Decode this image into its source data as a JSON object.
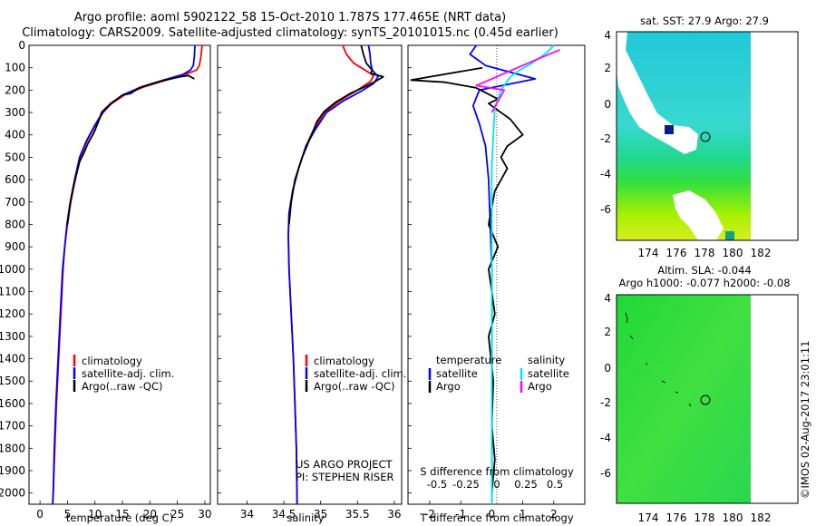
{
  "header": {
    "line1": "Argo profile: aoml 5902122_58 15-Oct-2010 1.787S 177.465E (NRT data)",
    "line2": "Climatology: CARS2009. Satellite-adjusted climatology: synTS_20101015.nc (0.45d earlier)"
  },
  "colors": {
    "clim": "#ff0000",
    "sat": "#0000ff",
    "argo": "#000000",
    "sat_s": "#00e5ee",
    "argo_s": "#ff00ff"
  },
  "chart_data": [
    {
      "type": "line",
      "id": "temperature",
      "xlabel": "temperature (deg C)",
      "ylabel": "",
      "xlim": [
        -2,
        31
      ],
      "ylim": [
        2050,
        0
      ],
      "xticks": [
        0,
        5,
        10,
        15,
        20,
        25,
        30
      ],
      "yticks": [
        0,
        100,
        200,
        300,
        400,
        500,
        600,
        700,
        800,
        900,
        1000,
        1100,
        1200,
        1300,
        1400,
        1500,
        1600,
        1700,
        1800,
        1900,
        2000
      ],
      "legend": [
        "climatology",
        "satellite-adj. clim.",
        "Argo(..raw -QC)"
      ],
      "series": [
        {
          "name": "climatology",
          "color": "clim",
          "points": [
            [
              29.5,
              0
            ],
            [
              29.3,
              50
            ],
            [
              29.0,
              90
            ],
            [
              28.5,
              110
            ],
            [
              26.5,
              130
            ],
            [
              23,
              155
            ],
            [
              19,
              185
            ],
            [
              15.5,
              220
            ],
            [
              13,
              260
            ],
            [
              11.5,
              300
            ],
            [
              10,
              360
            ],
            [
              8.5,
              430
            ],
            [
              7.3,
              500
            ],
            [
              6.4,
              600
            ],
            [
              5.6,
              700
            ],
            [
              5.0,
              800
            ],
            [
              4.5,
              900
            ],
            [
              4.2,
              1000
            ],
            [
              3.8,
              1200
            ],
            [
              3.4,
              1400
            ],
            [
              3.0,
              1600
            ],
            [
              2.7,
              1800
            ],
            [
              2.4,
              2000
            ],
            [
              2.3,
              2050
            ]
          ]
        },
        {
          "name": "satellite-adj. clim.",
          "color": "sat",
          "points": [
            [
              28.2,
              0
            ],
            [
              28.1,
              50
            ],
            [
              27.9,
              90
            ],
            [
              27.4,
              110
            ],
            [
              26,
              130
            ],
            [
              22.5,
              155
            ],
            [
              18.5,
              185
            ],
            [
              15.2,
              220
            ],
            [
              12.8,
              260
            ],
            [
              11.4,
              300
            ],
            [
              9.9,
              360
            ],
            [
              8.4,
              430
            ],
            [
              7.2,
              500
            ],
            [
              6.3,
              600
            ],
            [
              5.5,
              700
            ],
            [
              4.9,
              800
            ],
            [
              4.5,
              900
            ],
            [
              4.1,
              1000
            ],
            [
              3.7,
              1200
            ],
            [
              3.3,
              1400
            ],
            [
              2.9,
              1600
            ],
            [
              2.6,
              1800
            ],
            [
              2.4,
              2000
            ],
            [
              2.3,
              2050
            ]
          ]
        },
        {
          "name": "Argo(..raw -QC)",
          "color": "argo",
          "points": [
            [
              28.1,
              150
            ],
            [
              27,
              135
            ],
            [
              25.5,
              140
            ],
            [
              22,
              160
            ],
            [
              18,
              190
            ],
            [
              16.5,
              215
            ],
            [
              15,
              222
            ],
            [
              13.5,
              250
            ],
            [
              12,
              280
            ],
            [
              11.2,
              300
            ],
            [
              10.8,
              330
            ],
            [
              10,
              380
            ],
            [
              9.6,
              400
            ],
            [
              8.7,
              440
            ],
            [
              8.0,
              480
            ],
            [
              7.2,
              520
            ],
            [
              6.6,
              580
            ],
            [
              6.0,
              640
            ],
            [
              5.4,
              720
            ],
            [
              5.0,
              800
            ]
          ]
        }
      ]
    },
    {
      "type": "line",
      "id": "salinity",
      "xlabel": "salinity",
      "xlim": [
        33.6,
        36.1
      ],
      "ylim": [
        2050,
        0
      ],
      "xticks": [
        34,
        34.5,
        35,
        35.5,
        36
      ],
      "tick_labels": [
        "34",
        "34.5",
        "35",
        "35.5",
        "36"
      ],
      "legend": [
        "climatology",
        "satellite-adj. clim.",
        "Argo(..raw -QC)"
      ],
      "annotation": [
        "US ARGO PROJECT",
        "PI: STEPHEN RISER"
      ],
      "series": [
        {
          "name": "climatology",
          "color": "clim",
          "points": [
            [
              35.3,
              0
            ],
            [
              35.35,
              40
            ],
            [
              35.45,
              80
            ],
            [
              35.6,
              110
            ],
            [
              35.72,
              135
            ],
            [
              35.68,
              160
            ],
            [
              35.5,
              200
            ],
            [
              35.25,
              250
            ],
            [
              35.05,
              300
            ],
            [
              34.9,
              380
            ],
            [
              34.8,
              450
            ],
            [
              34.7,
              550
            ],
            [
              34.62,
              650
            ],
            [
              34.57,
              750
            ],
            [
              34.56,
              850
            ],
            [
              34.57,
              1000
            ],
            [
              34.6,
              1200
            ],
            [
              34.63,
              1400
            ],
            [
              34.65,
              1600
            ],
            [
              34.67,
              1800
            ],
            [
              34.68,
              2050
            ]
          ]
        },
        {
          "name": "satellite-adj. clim.",
          "color": "sat",
          "points": [
            [
              35.65,
              0
            ],
            [
              35.67,
              40
            ],
            [
              35.68,
              80
            ],
            [
              35.7,
              110
            ],
            [
              35.78,
              140
            ],
            [
              35.72,
              170
            ],
            [
              35.55,
              205
            ],
            [
              35.3,
              250
            ],
            [
              35.08,
              300
            ],
            [
              34.92,
              380
            ],
            [
              34.8,
              450
            ],
            [
              34.7,
              550
            ],
            [
              34.62,
              650
            ],
            [
              34.57,
              750
            ],
            [
              34.56,
              850
            ],
            [
              34.57,
              1000
            ],
            [
              34.6,
              1200
            ],
            [
              34.63,
              1400
            ],
            [
              34.65,
              1600
            ],
            [
              34.67,
              1800
            ],
            [
              34.68,
              2050
            ]
          ]
        },
        {
          "name": "Argo(..raw -QC)",
          "color": "argo",
          "points": [
            [
              35.55,
              0
            ],
            [
              35.58,
              40
            ],
            [
              35.62,
              80
            ],
            [
              35.7,
              110
            ],
            [
              35.68,
              125
            ],
            [
              35.85,
              140
            ],
            [
              35.75,
              160
            ],
            [
              35.6,
              185
            ],
            [
              35.4,
              215
            ],
            [
              35.2,
              255
            ],
            [
              35.05,
              295
            ],
            [
              34.95,
              340
            ],
            [
              34.9,
              380
            ],
            [
              34.85,
              420
            ],
            [
              34.75,
              500
            ],
            [
              34.65,
              600
            ],
            [
              34.6,
              700
            ],
            [
              34.57,
              800
            ]
          ]
        }
      ]
    },
    {
      "type": "line",
      "id": "difference",
      "xlabel": "T difference from climatology",
      "top_label": "S difference from climatology",
      "xlim": [
        -2.7,
        3.0
      ],
      "ylim": [
        2050,
        0
      ],
      "xticks": [
        -2,
        -1,
        0,
        1,
        2
      ],
      "tick_labels": [
        "-2",
        "-1",
        "0",
        "1",
        "2"
      ],
      "s_ticks": [
        "-0.5",
        "-0.25",
        "0",
        "0.25",
        "0.5"
      ],
      "legend_t": [
        "temperature",
        "satellite",
        "Argo"
      ],
      "legend_s": [
        "salinity",
        "satellite",
        "Argo"
      ],
      "series": [
        {
          "name": "T satellite",
          "color": "sat",
          "points": [
            [
              -0.5,
              0
            ],
            [
              -0.7,
              40
            ],
            [
              -0.2,
              90
            ],
            [
              1.4,
              150
            ],
            [
              -0.4,
              200
            ],
            [
              -0.6,
              270
            ],
            [
              -0.4,
              350
            ],
            [
              -0.2,
              450
            ],
            [
              -0.1,
              600
            ],
            [
              -0.05,
              800
            ],
            [
              0,
              1000
            ],
            [
              0,
              2050
            ]
          ]
        },
        {
          "name": "T Argo",
          "color": "argo",
          "points": [
            [
              -0.3,
              100
            ],
            [
              -2.6,
              155
            ],
            [
              -1.5,
              165
            ],
            [
              -0.5,
              190
            ],
            [
              0.2,
              240
            ],
            [
              -0.1,
              260
            ],
            [
              0.6,
              330
            ],
            [
              1.0,
              400
            ],
            [
              0.5,
              450
            ],
            [
              0.3,
              500
            ],
            [
              0.5,
              550
            ],
            [
              0.1,
              650
            ],
            [
              -0.1,
              800
            ],
            [
              0.2,
              900
            ],
            [
              -0.1,
              1000
            ],
            [
              0,
              1100
            ],
            [
              0.1,
              1200
            ],
            [
              -0.1,
              1300
            ],
            [
              0.05,
              1500
            ],
            [
              0,
              1700
            ],
            [
              0.1,
              1850
            ],
            [
              0,
              2000
            ]
          ]
        },
        {
          "name": "S satellite",
          "color": "sat_s",
          "points": [
            [
              2.0,
              0
            ],
            [
              1.8,
              30
            ],
            [
              1.3,
              80
            ],
            [
              0.9,
              110
            ],
            [
              0.6,
              140
            ],
            [
              0.3,
              200
            ],
            [
              0.1,
              280
            ],
            [
              0.05,
              400
            ],
            [
              0,
              550
            ],
            [
              0,
              2050
            ]
          ]
        },
        {
          "name": "S Argo",
          "color": "argo_s",
          "points": [
            [
              2.2,
              20
            ],
            [
              1.5,
              60
            ],
            [
              0.5,
              120
            ],
            [
              -0.5,
              180
            ],
            [
              0.4,
              200
            ],
            [
              0.2,
              250
            ],
            [
              0,
              300
            ]
          ]
        }
      ]
    }
  ],
  "maps": [
    {
      "title": "sat. SST: 27.9 Argo: 27.9",
      "xticks": [
        "174",
        "176",
        "178",
        "180",
        "182"
      ],
      "yticks": [
        "4",
        "2",
        "0",
        "-2",
        "-4",
        "-6"
      ]
    },
    {
      "title_line1": "Altim. SLA: -0.044",
      "title_line2": "Argo h1000: -0.077 h2000: -0.08",
      "xticks": [
        "174",
        "176",
        "178",
        "180",
        "182"
      ],
      "yticks": [
        "4",
        "2",
        "0",
        "-2",
        "-4",
        "-6"
      ]
    }
  ],
  "footer": {
    "credit": "©IMOS 02-Aug-2017 23:01:11"
  }
}
